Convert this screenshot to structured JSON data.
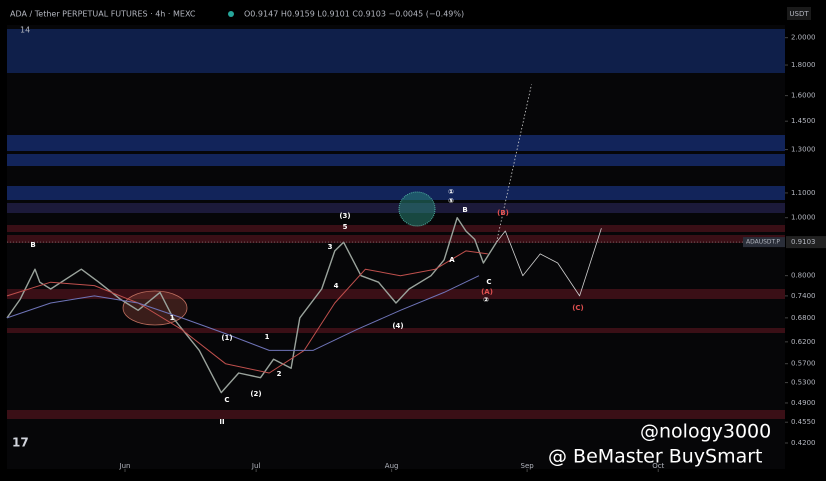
{
  "chart_data": {
    "type": "line",
    "title": "ADA / Tether PERPETUAL FUTURES · 4h · MEXC",
    "ohlc": "O0.9147 H0.9159 L0.9101 C0.9103 −0.0045 (−0.49%)",
    "indicator": "14",
    "currency": "USDT",
    "log_scale": true,
    "xlim": [
      0,
      178
    ],
    "ylim": [
      0.38,
      2.1
    ],
    "xticks": [
      {
        "value": 27,
        "label": "Jun"
      },
      {
        "value": 57,
        "label": "Jul"
      },
      {
        "value": 88,
        "label": "Aug"
      },
      {
        "value": 119,
        "label": "Sep"
      },
      {
        "value": 149,
        "label": "Oct"
      }
    ],
    "yticks": [
      {
        "value": 2.0,
        "label": "2.0000"
      },
      {
        "value": 1.8,
        "label": "1.8000"
      },
      {
        "value": 1.6,
        "label": "1.6000"
      },
      {
        "value": 1.45,
        "label": "1.4500"
      },
      {
        "value": 1.3,
        "label": "1.3000"
      },
      {
        "value": 1.1,
        "label": "1.1000"
      },
      {
        "value": 1.0,
        "label": "1.0000"
      },
      {
        "value": 0.8,
        "label": "0.8000"
      },
      {
        "value": 0.74,
        "label": "0.7400"
      },
      {
        "value": 0.68,
        "label": "0.6800"
      },
      {
        "value": 0.62,
        "label": "0.6200"
      },
      {
        "value": 0.57,
        "label": "0.5700"
      },
      {
        "value": 0.53,
        "label": "0.5300"
      },
      {
        "value": 0.49,
        "label": "0.4900"
      },
      {
        "value": 0.455,
        "label": "0.4550"
      },
      {
        "value": 0.42,
        "label": "0.4200"
      }
    ],
    "last_price": {
      "symbol": "ADAUSDT.P",
      "value": 0.9103,
      "label": "0.9103"
    },
    "series": [
      {
        "name": "price",
        "color": "#9aa39c",
        "width": 1.4,
        "x": [
          0,
          3,
          6.4,
          7.5,
          10,
          17,
          21,
          26,
          30,
          35,
          38,
          44,
          49,
          53,
          58,
          61,
          65,
          67,
          72,
          75,
          77,
          81,
          85,
          89,
          92,
          97,
          100,
          103,
          105,
          107,
          109,
          112
        ],
        "values": [
          0.68,
          0.73,
          0.82,
          0.78,
          0.76,
          0.82,
          0.78,
          0.73,
          0.7,
          0.75,
          0.68,
          0.6,
          0.51,
          0.55,
          0.54,
          0.58,
          0.56,
          0.68,
          0.76,
          0.88,
          0.91,
          0.8,
          0.78,
          0.72,
          0.76,
          0.8,
          0.85,
          1.0,
          0.95,
          0.92,
          0.84,
          0.91
        ]
      },
      {
        "name": "ma-fast",
        "color": "#c0504d",
        "width": 1,
        "x": [
          0,
          10,
          20,
          30,
          40,
          50,
          60,
          68,
          75,
          82,
          90,
          98,
          105,
          110
        ],
        "values": [
          0.74,
          0.78,
          0.77,
          0.72,
          0.65,
          0.57,
          0.55,
          0.6,
          0.72,
          0.82,
          0.8,
          0.82,
          0.88,
          0.87
        ]
      },
      {
        "name": "ma-slow",
        "color": "#6f74b8",
        "width": 1,
        "x": [
          0,
          10,
          20,
          30,
          40,
          50,
          60,
          70,
          80,
          90,
          100,
          108
        ],
        "values": [
          0.68,
          0.72,
          0.74,
          0.72,
          0.68,
          0.64,
          0.6,
          0.6,
          0.65,
          0.7,
          0.75,
          0.8
        ]
      },
      {
        "name": "projection",
        "color": "#d0d0d0",
        "width": 0.8,
        "x": [
          112,
          114,
          118,
          122,
          126,
          131,
          136
        ],
        "values": [
          0.91,
          0.95,
          0.8,
          0.87,
          0.84,
          0.74,
          0.96
        ]
      },
      {
        "name": "target",
        "color": "#d0d0d0",
        "width": 0.8,
        "dashed": true,
        "x": [
          112,
          120
        ],
        "values": [
          0.91,
          1.67
        ]
      }
    ],
    "annotations": [
      "B",
      "3",
      "(3)",
      "5",
      "4",
      "(4)",
      "1",
      "(1)",
      "1",
      "2",
      "(2)",
      "C",
      "II",
      "A",
      "B",
      "(B)",
      "①",
      "⑤",
      "C",
      "②",
      "(A)",
      "(C)"
    ],
    "watermarks": [
      "@nology3000",
      "@ BeMaster BuySmart"
    ]
  }
}
